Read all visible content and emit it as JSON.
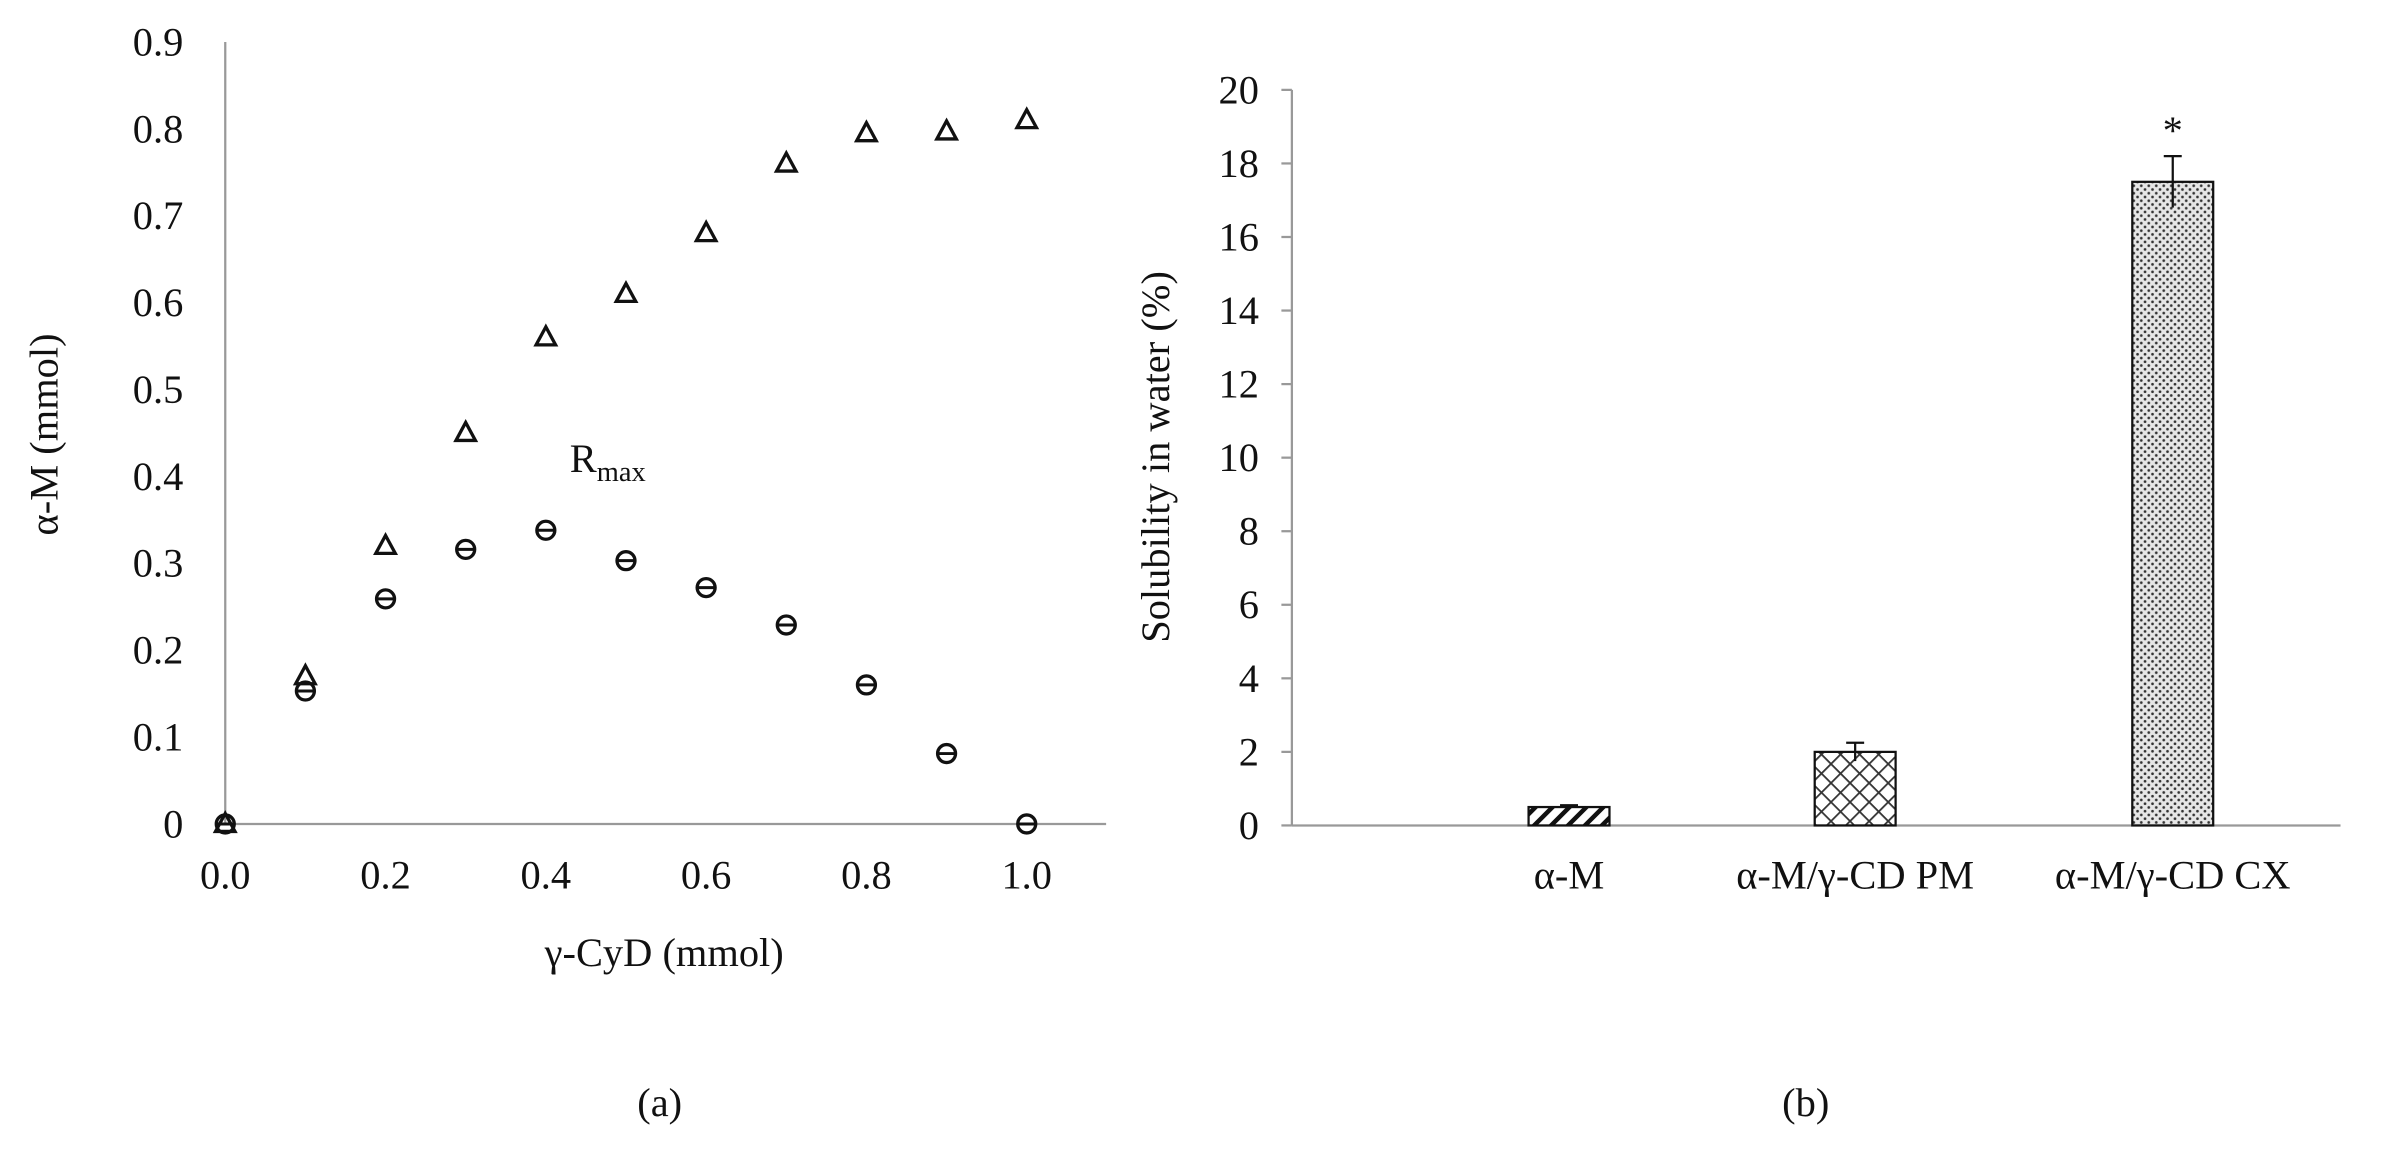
{
  "chart_data": [
    {
      "type": "scatter",
      "panel_label": "(a)",
      "xlabel": "γ-CyD (mmol)",
      "ylabel": "α-M (mmol)",
      "xlim": [
        0,
        1.1
      ],
      "ylim": [
        0,
        0.9
      ],
      "xticks": [
        "0.0",
        "0.2",
        "0.4",
        "0.6",
        "0.8",
        "1.0"
      ],
      "yticks": [
        "0",
        "0.1",
        "0.2",
        "0.3",
        "0.4",
        "0.5",
        "0.6",
        "0.7",
        "0.8",
        "0.9"
      ],
      "grid": false,
      "annotation": {
        "text": "R",
        "subscript": "max",
        "x": 0.44,
        "y": 0.42
      },
      "series": [
        {
          "marker": "triangle",
          "x": [
            0,
            0.1,
            0.2,
            0.3,
            0.4,
            0.5,
            0.6,
            0.7,
            0.8,
            0.9,
            1.0
          ],
          "y": [
            0,
            0.17,
            0.32,
            0.45,
            0.56,
            0.61,
            0.68,
            0.76,
            0.795,
            0.797,
            0.81
          ]
        },
        {
          "marker": "circle-bar",
          "x": [
            0,
            0.1,
            0.2,
            0.3,
            0.4,
            0.5,
            0.6,
            0.7,
            0.8,
            0.9,
            1.0
          ],
          "y": [
            0,
            0.153,
            0.259,
            0.316,
            0.338,
            0.303,
            0.272,
            0.229,
            0.16,
            0.081,
            0
          ]
        }
      ]
    },
    {
      "type": "bar",
      "panel_label": "(b)",
      "xlabel": "",
      "ylabel": "Solubility in water (%)",
      "ylim": [
        0,
        20
      ],
      "yticks": [
        "0",
        "2",
        "4",
        "6",
        "8",
        "10",
        "12",
        "14",
        "16",
        "18",
        "20"
      ],
      "grid": false,
      "categories": [
        "α-M",
        "α-M/γ-CD PM",
        "α-M/γ-CD CX"
      ],
      "values": [
        0.5,
        2.0,
        17.5
      ],
      "errors": [
        0.05,
        0.25,
        0.7
      ],
      "patterns": [
        "diagonal",
        "crosshatch",
        "dots"
      ],
      "significance": [
        "",
        "",
        "*"
      ]
    }
  ]
}
